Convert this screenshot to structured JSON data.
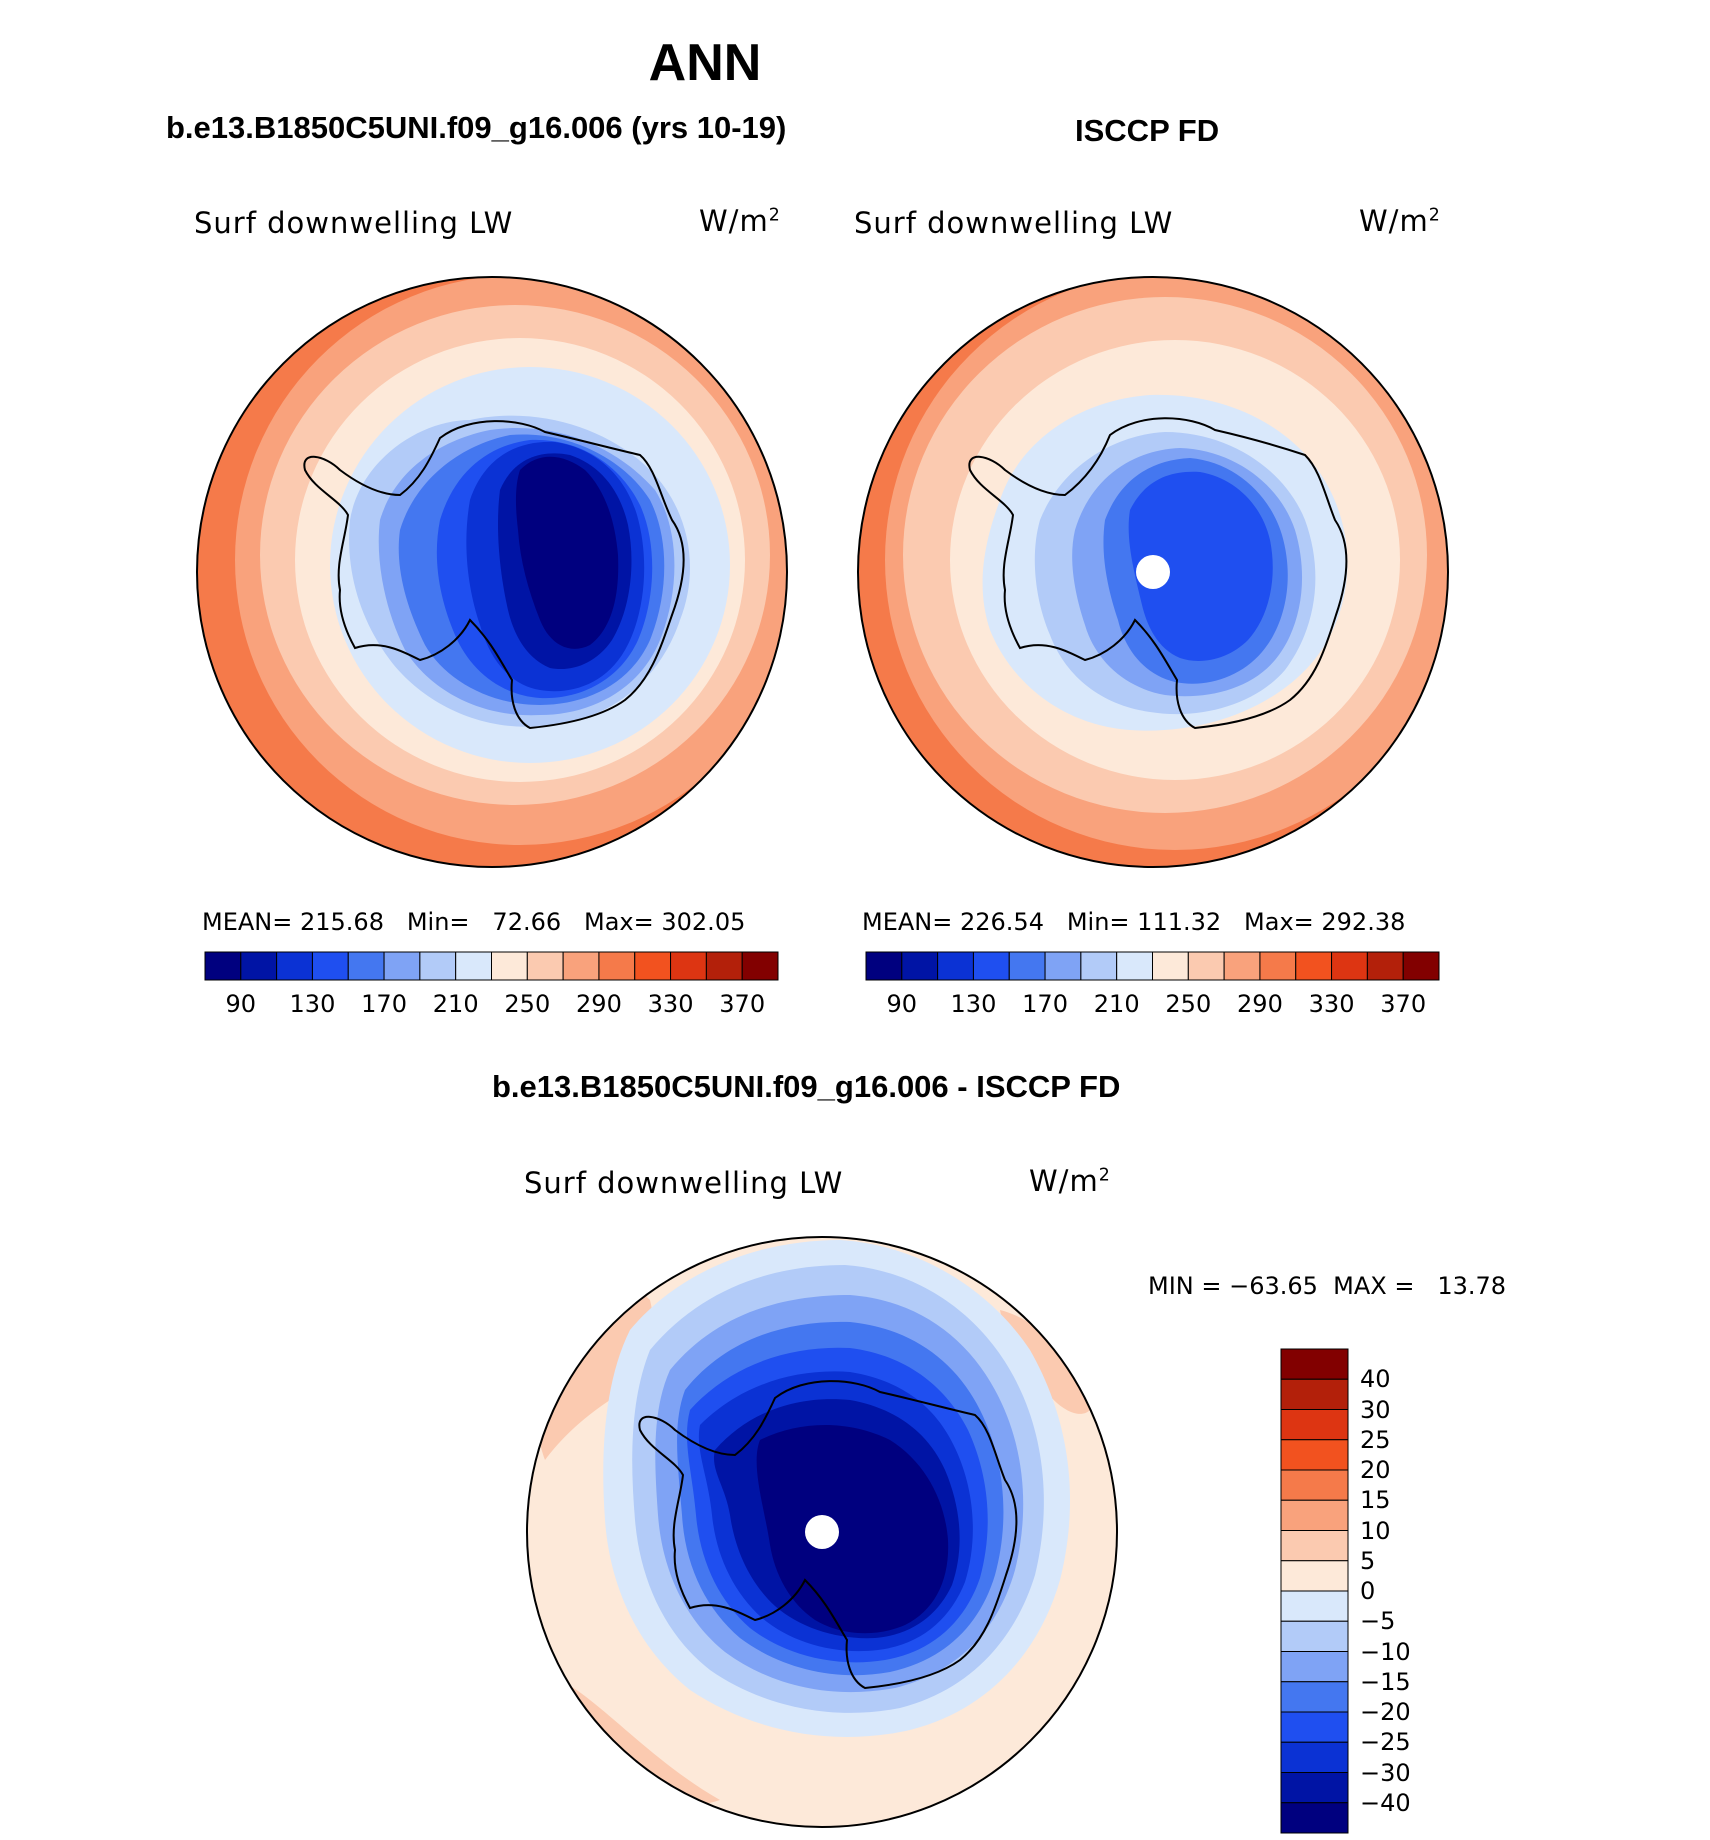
{
  "title": "ANN",
  "panels": [
    {
      "case": "b.e13.B1850C5UNI.f09_g16.006 (yrs 10-19)",
      "field": "Surf downwelling LW",
      "units_base": "W/m",
      "units_exp": "2",
      "stats": "MEAN= 215.68   Min=   72.66   Max= 302.05"
    },
    {
      "case": "ISCCP FD",
      "field": "Surf downwelling LW",
      "units_base": "W/m",
      "units_exp": "2",
      "stats": "MEAN= 226.54   Min= 111.32   Max= 292.38"
    },
    {
      "case": "b.e13.B1850C5UNI.f09_g16.006 - ISCCP FD",
      "field": "Surf downwelling LW",
      "units_base": "W/m",
      "units_exp": "2",
      "stats": "MIN = −63.65  MAX =   13.78"
    }
  ],
  "abs_colorbar": {
    "ticks": [
      "90",
      "130",
      "170",
      "210",
      "250",
      "290",
      "330",
      "370"
    ],
    "colors": [
      "#00007f",
      "#0014a5",
      "#0b32d4",
      "#1f4ff0",
      "#4477f0",
      "#7fa3f5",
      "#b2cbf8",
      "#d9e8fb",
      "#fde9d9",
      "#fbcab0",
      "#f9a27c",
      "#f57a4a",
      "#f2521f",
      "#dd3512",
      "#b3200a",
      "#820000"
    ]
  },
  "diff_colorbar": {
    "ticks": [
      "40",
      "30",
      "25",
      "20",
      "15",
      "10",
      "5",
      "0",
      "−5",
      "−10",
      "−15",
      "−20",
      "−25",
      "−30",
      "−40"
    ],
    "colors": [
      "#820000",
      "#b3200a",
      "#dd3512",
      "#f2521f",
      "#f57a4a",
      "#f9a27c",
      "#fbcab0",
      "#fde9d9",
      "#d9e8fb",
      "#b2cbf8",
      "#7fa3f5",
      "#4477f0",
      "#1f4ff0",
      "#0b32d4",
      "#0014a5",
      "#00007f"
    ]
  }
}
